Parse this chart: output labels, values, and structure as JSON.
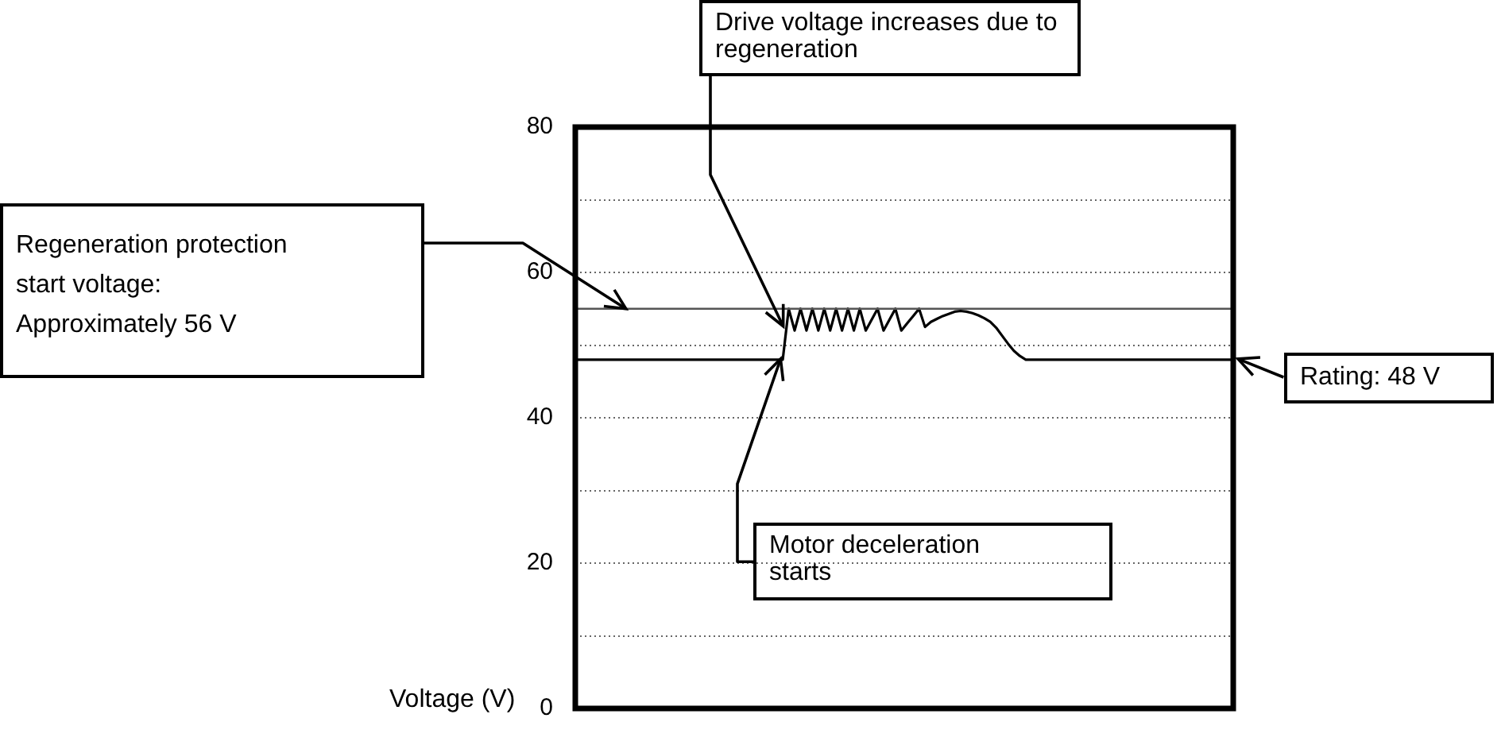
{
  "chart_data": {
    "type": "line",
    "ylabel": "Voltage (V)",
    "categories": [
      null,
      null,
      null,
      null,
      null,
      null,
      null,
      null,
      null,
      null,
      null,
      null,
      null,
      null,
      null,
      null,
      null,
      null,
      null,
      null,
      null,
      null,
      null,
      null,
      null,
      null,
      null,
      null,
      null,
      null,
      null,
      null,
      null,
      null,
      null,
      null,
      null,
      null,
      null,
      null,
      null,
      null,
      null,
      null,
      null,
      null,
      null,
      null,
      null,
      null,
      null,
      null,
      null,
      null,
      null,
      null,
      null,
      null,
      null,
      null,
      null,
      null,
      null,
      null,
      null,
      null,
      null,
      null,
      null,
      null,
      null,
      null,
      null,
      null,
      null,
      null,
      null,
      null,
      null,
      null,
      null,
      null,
      null,
      null,
      null,
      null,
      null,
      null,
      null,
      null,
      null,
      null,
      null,
      null,
      null,
      null,
      null,
      null,
      null,
      null,
      null,
      null,
      null,
      null,
      null,
      null,
      null,
      null,
      null,
      null,
      null,
      null
    ],
    "series": [
      {
        "color": "#000000",
        "values": [
          48,
          48,
          48,
          48,
          48,
          48,
          48,
          48,
          48,
          48,
          48,
          48,
          48,
          48,
          48,
          48,
          48,
          48,
          48,
          48,
          48,
          48,
          48,
          48,
          48,
          48,
          48,
          48,
          48,
          48,
          48,
          48,
          48,
          48,
          48,
          48,
          55,
          52,
          55,
          52,
          55,
          52,
          55,
          52,
          55,
          52,
          55,
          52,
          55,
          52,
          53.5,
          55,
          52,
          53.5,
          55,
          52,
          53,
          54,
          55,
          52.5,
          53.2,
          53.6,
          54,
          54.3,
          54.6,
          54.7,
          54.6,
          54.4,
          54.1,
          53.7,
          53.2,
          52.4,
          51.3,
          50.2,
          49.2,
          48.5,
          48,
          48,
          48,
          48,
          48,
          48,
          48,
          48,
          48,
          48,
          48,
          48,
          48,
          48,
          48,
          48,
          48,
          48,
          48,
          48,
          48,
          48,
          48,
          48,
          48,
          48,
          48,
          48,
          48,
          48,
          48,
          48,
          48,
          48,
          48,
          48
        ]
      }
    ],
    "ylim": [
      0,
      80
    ],
    "yticks": [
      0,
      {
        "value": 10,
        "label": null
      },
      20,
      {
        "value": 30,
        "label": null
      },
      40,
      {
        "value": 50,
        "label": null
      },
      60,
      {
        "value": 70,
        "label": null
      },
      80
    ],
    "grid": "y",
    "tick_labels": "y",
    "marker": "none",
    "line_style": "solid",
    "ref_lines": [
      {
        "axis": "y",
        "value": 55,
        "color": "#555555"
      }
    ],
    "annotations": [
      "Regeneration protection start voltage: Approximately 56 V",
      "Drive voltage increases due to regeneration",
      "Motor deceleration starts",
      "Rating: 48 V"
    ]
  }
}
